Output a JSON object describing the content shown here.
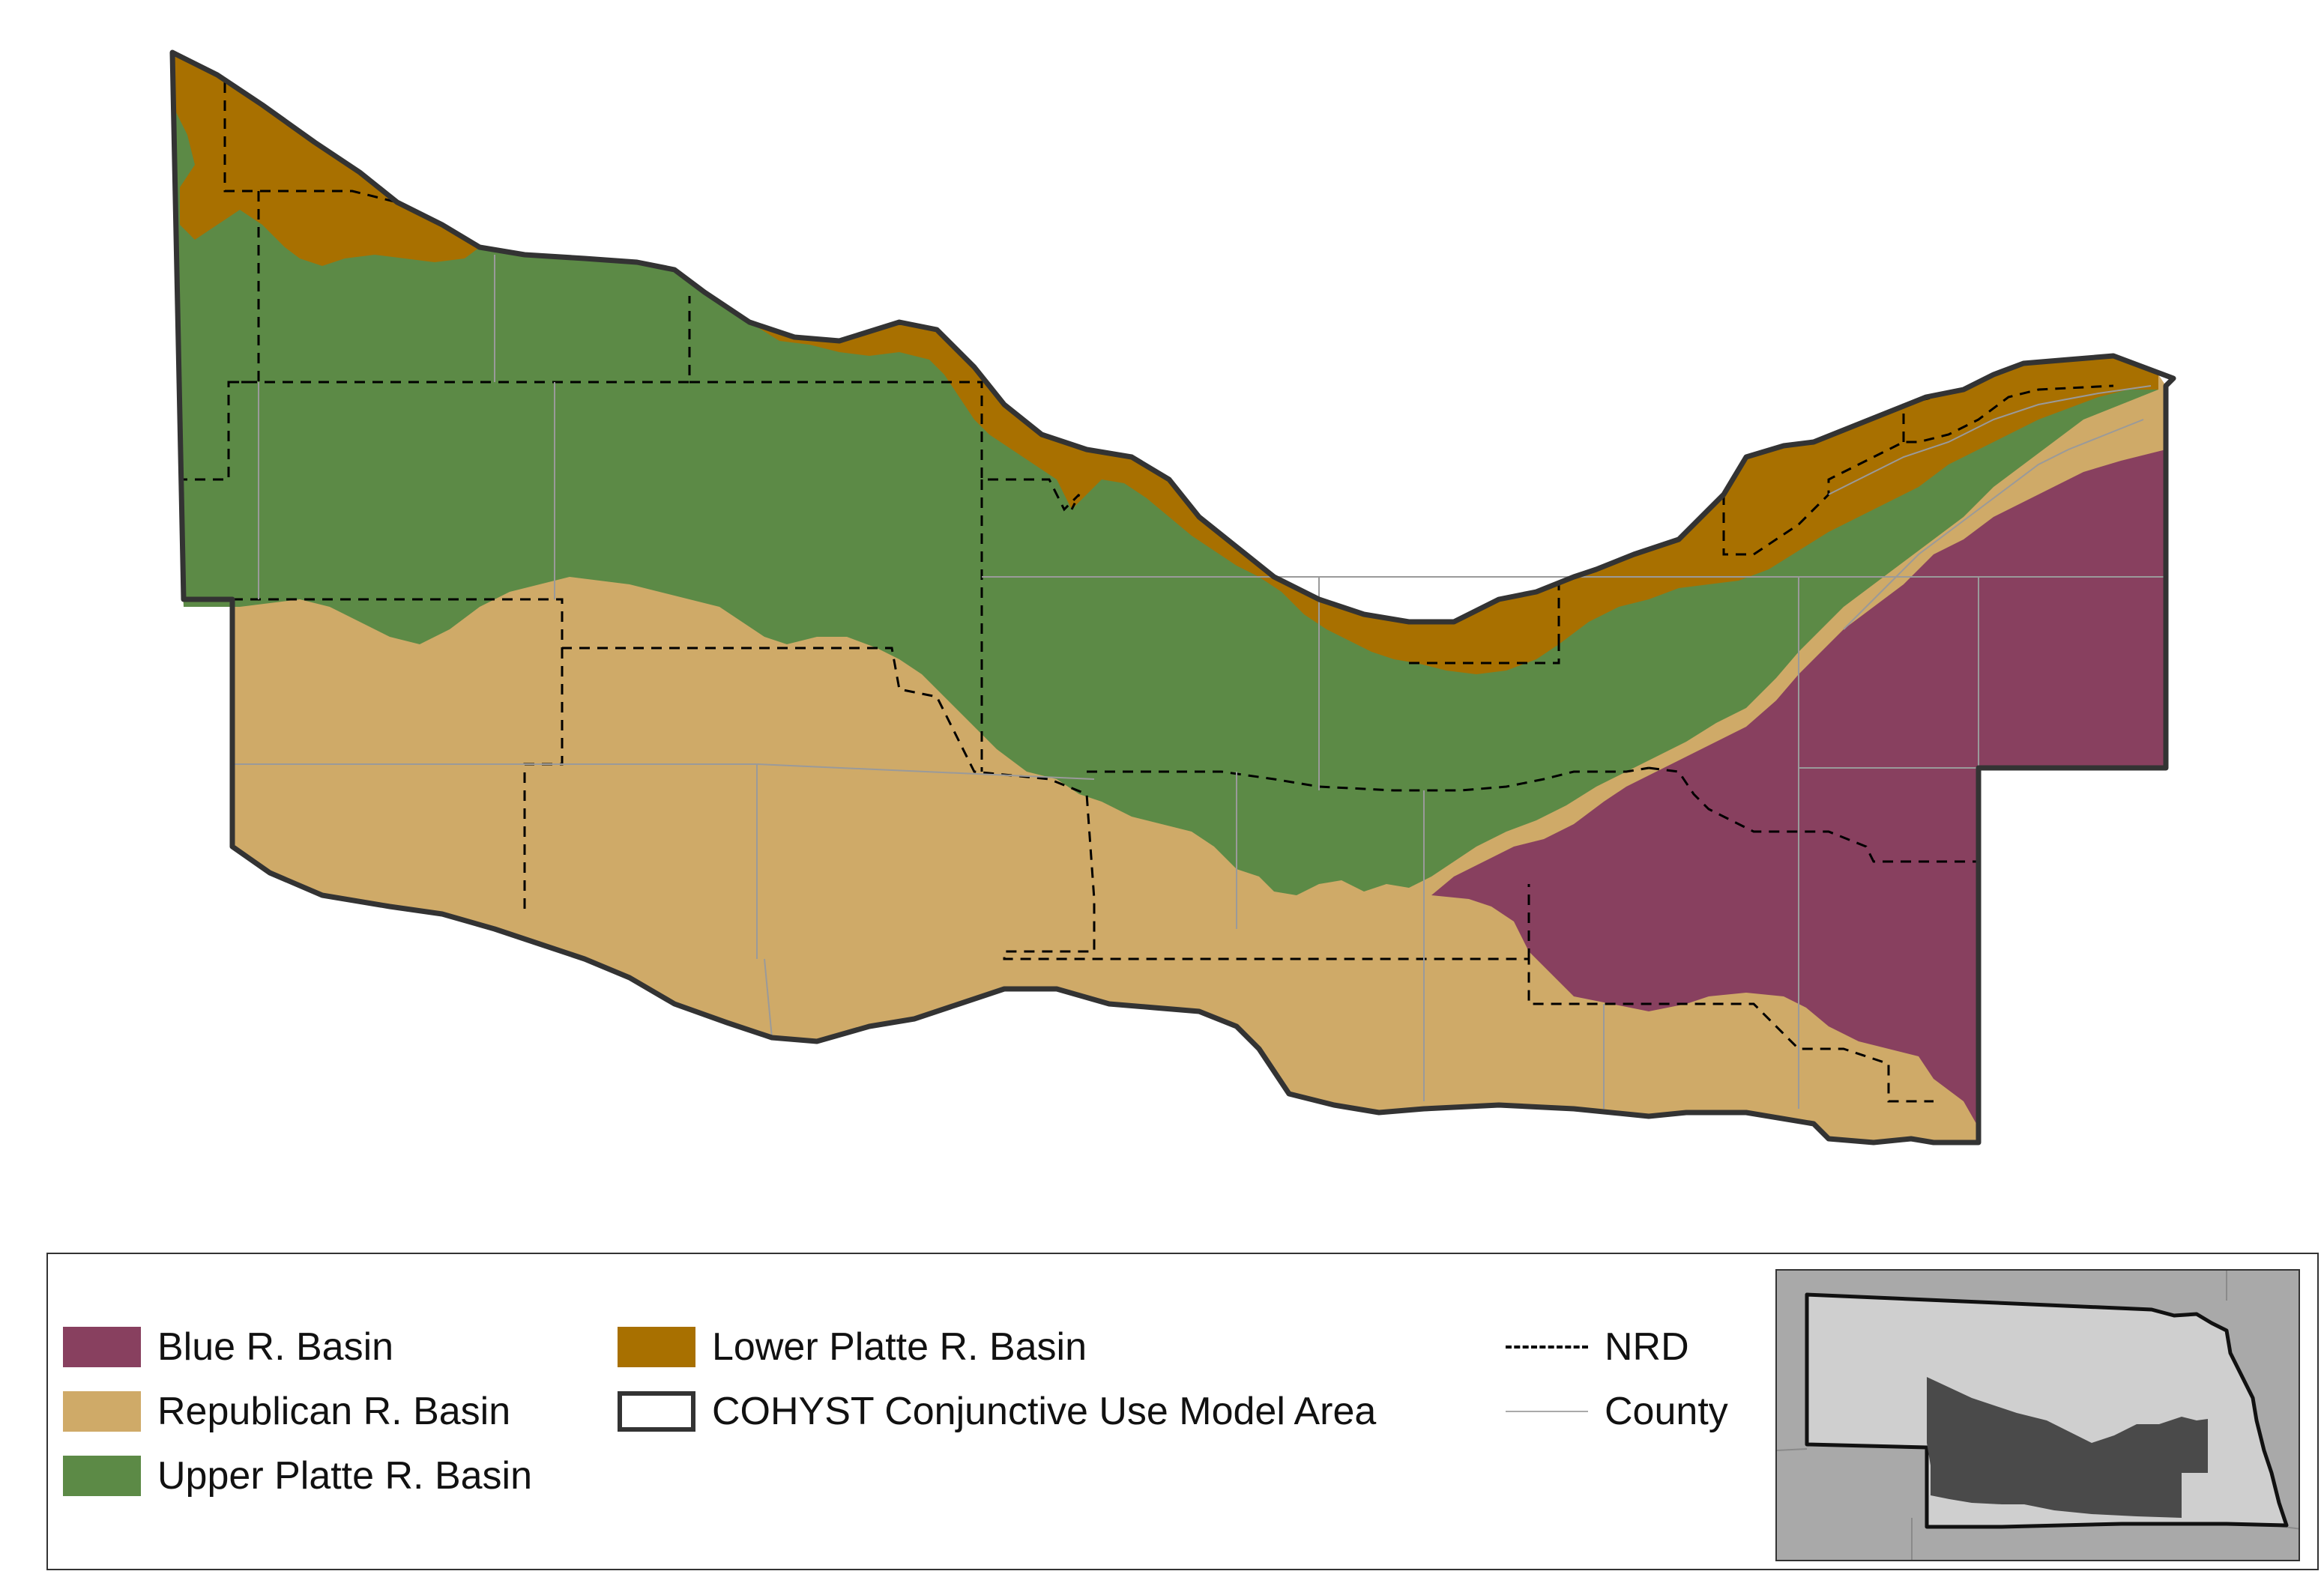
{
  "legend": {
    "items": [
      {
        "id": "blue",
        "label": "Blue R. Basin",
        "color": "#88405f"
      },
      {
        "id": "republican",
        "label": "Republican R. Basin",
        "color": "#cfaa68"
      },
      {
        "id": "upper-platte",
        "label": "Upper Platte R. Basin",
        "color": "#5c8a46"
      },
      {
        "id": "lower-platte",
        "label": "Lower Platte R. Basin",
        "color": "#a87000"
      },
      {
        "id": "cohyst",
        "label": "COHYST Conjunctive Use Model Area",
        "color": "#333333"
      },
      {
        "id": "nrd",
        "label": "NRD",
        "color": "#000000"
      },
      {
        "id": "county",
        "label": "County",
        "color": "#aaaaaa"
      }
    ]
  },
  "colors": {
    "blue_basin": "#88405f",
    "republican_basin": "#cfaa68",
    "upper_platte_basin": "#5c8a46",
    "lower_platte_basin": "#a87000",
    "model_boundary": "#333333",
    "inset_background": "#a9a9a9",
    "inset_state": "#cfcfcf",
    "inset_model_area": "#4a4a4a"
  }
}
